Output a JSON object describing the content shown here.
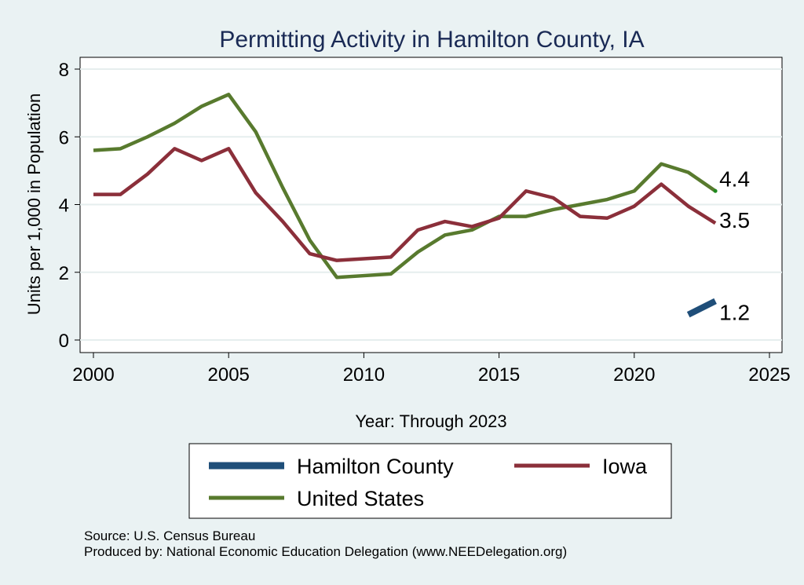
{
  "chart_data": {
    "type": "line",
    "title": "Permitting Activity in Hamilton County, IA",
    "xlabel": "Year: Through 2023",
    "ylabel": "Units per 1,000 in Population",
    "xlim": [
      2000,
      2025
    ],
    "ylim": [
      0,
      8
    ],
    "x_ticks": [
      2000,
      2005,
      2010,
      2015,
      2020,
      2025
    ],
    "y_ticks": [
      0,
      2,
      4,
      6,
      8
    ],
    "grid": true,
    "legend_position": "bottom",
    "series": [
      {
        "name": "Hamilton County",
        "color": "#1f4e79",
        "x": [
          2022,
          2023
        ],
        "values": [
          0.75,
          1.15
        ],
        "end_label": "1.2"
      },
      {
        "name": "Iowa",
        "color": "#8b2f3a",
        "x": [
          2000,
          2001,
          2002,
          2003,
          2004,
          2005,
          2006,
          2007,
          2008,
          2009,
          2010,
          2011,
          2012,
          2013,
          2014,
          2015,
          2016,
          2017,
          2018,
          2019,
          2020,
          2021,
          2022,
          2023
        ],
        "values": [
          4.3,
          4.3,
          4.9,
          5.65,
          5.3,
          5.65,
          4.35,
          3.5,
          2.55,
          2.35,
          2.4,
          2.45,
          3.25,
          3.5,
          3.35,
          3.6,
          4.4,
          4.2,
          3.65,
          3.6,
          3.95,
          4.6,
          3.95,
          3.45
        ],
        "end_label": "3.5"
      },
      {
        "name": "United States",
        "color": "#587a2e",
        "x": [
          2000,
          2001,
          2002,
          2003,
          2004,
          2005,
          2006,
          2007,
          2008,
          2009,
          2010,
          2011,
          2012,
          2013,
          2014,
          2015,
          2016,
          2017,
          2018,
          2019,
          2020,
          2021,
          2022,
          2023
        ],
        "values": [
          5.6,
          5.65,
          6.0,
          6.4,
          6.9,
          7.25,
          6.15,
          4.5,
          2.95,
          1.85,
          1.9,
          1.95,
          2.6,
          3.1,
          3.25,
          3.65,
          3.65,
          3.85,
          4.0,
          4.15,
          4.4,
          5.2,
          4.95,
          4.4
        ],
        "end_label": "4.4"
      }
    ],
    "legend_order": [
      "Hamilton County",
      "Iowa",
      "United States"
    ]
  },
  "notes": {
    "source": "Source: U.S. Census Bureau",
    "produced_by": "Produced by: National Economic Education Delegation (www.NEEDelegation.org)"
  }
}
